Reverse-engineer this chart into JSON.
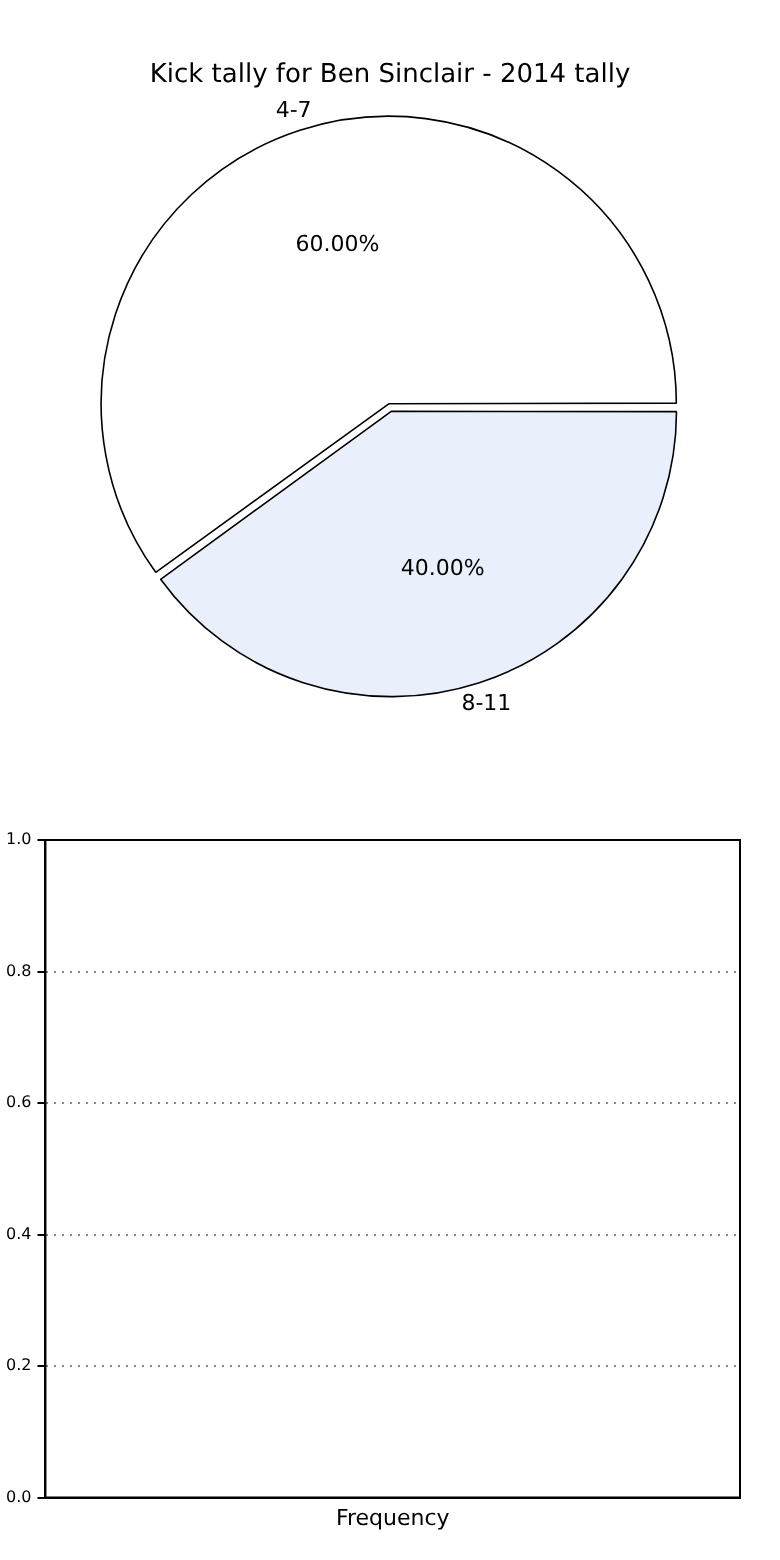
{
  "chart_data": [
    {
      "type": "pie",
      "title": "Kick tally for Ben Sinclair - 2014 tally",
      "categories": [
        "4-7",
        "8-11"
      ],
      "values": [
        60,
        40
      ],
      "colors": [
        "#ffffff",
        "#eaf0fb"
      ],
      "value_labels": [
        "60.00%",
        "40.00%"
      ],
      "legend": false
    },
    {
      "type": "bar",
      "categories": [
        "Frequency"
      ],
      "values": [
        null
      ],
      "ylim": [
        0,
        1
      ],
      "yticks": [
        {
          "value": 0,
          "label": "0.0"
        },
        {
          "value": 0.2,
          "label": "0.2"
        },
        {
          "value": 0.4,
          "label": "0.4"
        },
        {
          "value": 0.6,
          "label": "0.6"
        },
        {
          "value": 0.8,
          "label": "0.8"
        },
        {
          "value": 1,
          "label": "1.0"
        }
      ],
      "grid": "y",
      "line_style": "dotted",
      "legend": false
    }
  ]
}
